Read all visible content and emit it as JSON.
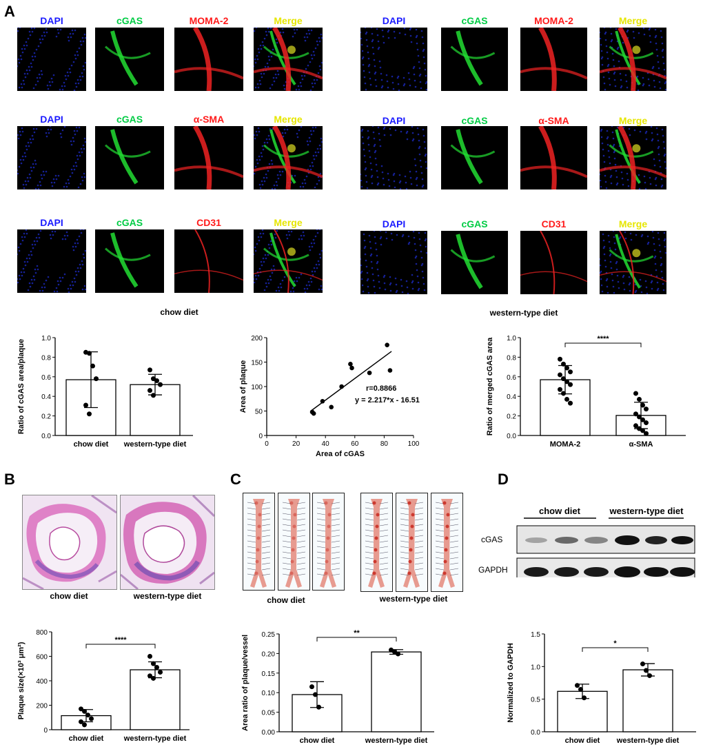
{
  "panels": {
    "a": "A",
    "b": "B",
    "c": "C",
    "d": "D"
  },
  "colors": {
    "dapi": "#1a1aff",
    "cgas": "#00cc44",
    "red": "#ff1a1a",
    "merge": "#e6e600"
  },
  "panel_a": {
    "rows_left": [
      [
        "DAPI",
        "cGAS",
        "MOMA-2",
        "Merge"
      ],
      [
        "DAPI",
        "cGAS",
        "α-SMA",
        "Merge"
      ],
      [
        "DAPI",
        "cGAS",
        "CD31",
        "Merge"
      ]
    ],
    "rows_right": [
      [
        "DAPI",
        "cGAS",
        "MOMA-2",
        "Merge"
      ],
      [
        "DAPI",
        "cGAS",
        "α-SMA",
        "Merge"
      ],
      [
        "DAPI",
        "cGAS",
        "CD31",
        "Merge"
      ]
    ],
    "left_caption": "chow diet",
    "right_caption": "western-type diet"
  },
  "panel_b": {
    "he_captions": [
      "chow diet",
      "western-type diet"
    ]
  },
  "panel_c": {
    "captions": [
      "chow diet",
      "western-type diet"
    ]
  },
  "panel_d": {
    "group_labels": [
      "chow diet",
      "western-type diet"
    ],
    "row_labels": [
      "cGAS",
      "GAPDH"
    ]
  },
  "chart_data": [
    {
      "type": "bar",
      "categories": [
        "chow diet",
        "western-type diet"
      ],
      "values": [
        0.57,
        0.52
      ],
      "errors": [
        0.285,
        0.105
      ],
      "points": [
        [
          0.85,
          0.84,
          0.71,
          0.58,
          0.31,
          0.22
        ],
        [
          0.67,
          0.58,
          0.56,
          0.52,
          0.46,
          0.41
        ]
      ],
      "ylabel": "Ratio of cGAS area/plaque",
      "ylim": [
        0,
        1.0
      ],
      "yticks": [
        "0.0",
        "0.2",
        "0.4",
        "0.6",
        "0.8",
        "1.0"
      ]
    },
    {
      "type": "scatter",
      "x": [
        31,
        32,
        38,
        44,
        51,
        57,
        58,
        70,
        82,
        84
      ],
      "y": [
        48,
        45,
        70,
        58,
        100,
        146,
        138,
        128,
        185,
        133
      ],
      "fit": {
        "slope": 2.217,
        "intercept": -16.51
      },
      "annotation_r": "r=0.8866",
      "annotation_eq": "y = 2.217*x - 16.51",
      "xlabel": "Area of cGAS",
      "ylabel": "Area of plaque",
      "xlim": [
        0,
        100
      ],
      "ylim": [
        0,
        200
      ],
      "xticks": [
        "0",
        "20",
        "40",
        "60",
        "80",
        "100"
      ],
      "yticks": [
        "0",
        "50",
        "100",
        "150",
        "200"
      ]
    },
    {
      "type": "bar",
      "categories": [
        "MOMA-2",
        "α-SMA"
      ],
      "values": [
        0.57,
        0.205
      ],
      "errors": [
        0.145,
        0.135
      ],
      "points": [
        [
          0.78,
          0.73,
          0.69,
          0.65,
          0.62,
          0.58,
          0.55,
          0.52,
          0.47,
          0.43,
          0.37,
          0.33
        ],
        [
          0.43,
          0.37,
          0.31,
          0.27,
          0.22,
          0.19,
          0.16,
          0.13,
          0.1,
          0.07,
          0.05,
          0.02
        ]
      ],
      "significance": "****",
      "ylabel": "Ratio of merged cGAS area",
      "ylim": [
        0,
        1.0
      ],
      "yticks": [
        "0.0",
        "0.2",
        "0.4",
        "0.6",
        "0.8",
        "1.0"
      ]
    },
    {
      "type": "bar",
      "categories": [
        "chow diet",
        "western-type diet"
      ],
      "values": [
        115,
        490
      ],
      "errors": [
        50,
        65
      ],
      "points": [
        [
          170,
          150,
          120,
          90,
          65,
          40
        ],
        [
          600,
          540,
          510,
          470,
          440,
          420
        ]
      ],
      "significance": "****",
      "ylabel": "Plaque size(×10³ μm²)",
      "ylim": [
        0,
        800
      ],
      "yticks": [
        "0",
        "200",
        "400",
        "600",
        "800"
      ]
    },
    {
      "type": "bar",
      "categories": [
        "chow diet",
        "western-type diet"
      ],
      "values": [
        0.095,
        0.204
      ],
      "errors": [
        0.033,
        0.006
      ],
      "points": [
        [
          0.115,
          0.095,
          0.063
        ],
        [
          0.209,
          0.204,
          0.199
        ]
      ],
      "significance": "**",
      "ylabel": "Area ratio of plaque/vessel",
      "ylim": [
        0,
        0.25
      ],
      "yticks": [
        "0.00",
        "0.05",
        "0.10",
        "0.15",
        "0.20",
        "0.25"
      ]
    },
    {
      "type": "bar",
      "categories": [
        "chow diet",
        "western-type diet"
      ],
      "values": [
        0.62,
        0.95
      ],
      "errors": [
        0.11,
        0.095
      ],
      "points": [
        [
          0.71,
          0.65,
          0.52
        ],
        [
          1.04,
          0.94,
          0.86
        ]
      ],
      "significance": "*",
      "ylabel": "Normalized to GAPDH",
      "ylim": [
        0,
        1.5
      ],
      "yticks": [
        "0.0",
        "0.5",
        "1.0",
        "1.5"
      ]
    }
  ]
}
